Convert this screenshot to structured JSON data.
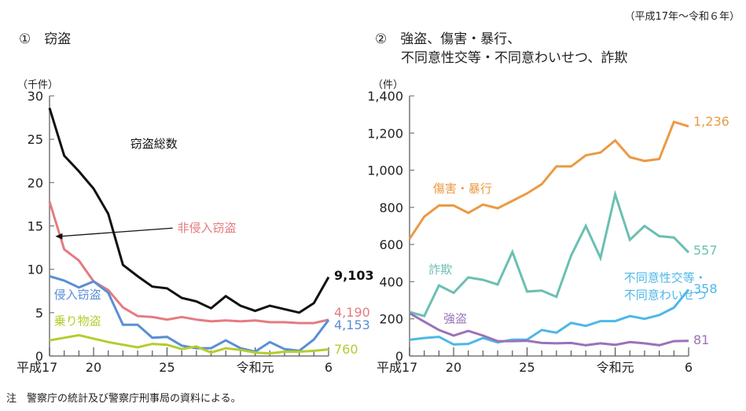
{
  "period_label": "（平成17年～令和６年）",
  "note": "注　警察庁の統計及び警察庁刑事局の資料による。",
  "chart_data": [
    {
      "type": "line",
      "title": "①　窃盗",
      "ylabel": "（千件）",
      "ylim": [
        0,
        30
      ],
      "yticks": [
        0,
        5,
        10,
        15,
        20,
        25,
        30
      ],
      "ytick_labels": [
        "0",
        "5",
        "10",
        "15",
        "20",
        "25",
        "30"
      ],
      "x": [
        "平成17",
        "18",
        "19",
        "20",
        "21",
        "22",
        "23",
        "24",
        "25",
        "26",
        "27",
        "28",
        "29",
        "30",
        "令和元",
        "2",
        "3",
        "4",
        "5",
        "6"
      ],
      "xtick_labels": [
        {
          "index": 0,
          "label": "平成17"
        },
        {
          "index": 3,
          "label": "20"
        },
        {
          "index": 8,
          "label": "25"
        },
        {
          "index": 14,
          "label": "令和元"
        },
        {
          "index": 19,
          "label": "6"
        }
      ],
      "major_tick_indices": [
        0,
        3,
        8,
        14,
        19
      ],
      "grid": false,
      "series": [
        {
          "name": "窃盗総数",
          "color": "#111111",
          "values": [
            28.6,
            23.1,
            21.3,
            19.3,
            16.4,
            10.5,
            9.2,
            8.0,
            7.8,
            6.7,
            6.3,
            5.5,
            6.9,
            5.8,
            5.2,
            5.8,
            5.4,
            5.0,
            6.1,
            9.103
          ],
          "end_label": "9,103",
          "label_pos": [
            5.5,
            24.0
          ]
        },
        {
          "name": "非侵入窃盗",
          "color": "#e57b80",
          "values": [
            17.8,
            12.3,
            11.0,
            8.6,
            7.6,
            5.6,
            4.6,
            4.5,
            4.2,
            4.5,
            4.2,
            4.0,
            4.1,
            4.0,
            4.1,
            3.9,
            3.9,
            3.8,
            3.8,
            4.19
          ],
          "end_label": "4,190",
          "label_pos": [
            8.7,
            14.3
          ],
          "arrow_to": [
            0.4,
            13.8
          ]
        },
        {
          "name": "侵入窃盗",
          "color": "#5a8fd4",
          "values": [
            9.2,
            8.7,
            7.9,
            8.6,
            7.3,
            3.6,
            3.6,
            2.1,
            2.2,
            1.2,
            0.9,
            0.9,
            1.8,
            0.9,
            0.5,
            1.6,
            0.8,
            0.6,
            1.9,
            4.153
          ],
          "end_label": "4,153",
          "label_pos": [
            0.3,
            6.6
          ]
        },
        {
          "name": "乗り物盗",
          "color": "#b5cc2e",
          "values": [
            1.8,
            2.1,
            2.4,
            2.0,
            1.6,
            1.3,
            1.0,
            1.4,
            1.3,
            0.8,
            1.1,
            0.4,
            0.9,
            0.7,
            0.4,
            0.3,
            0.5,
            0.5,
            0.6,
            0.76
          ],
          "end_label": "760",
          "label_pos": [
            0.3,
            3.6
          ]
        }
      ]
    },
    {
      "type": "line",
      "title": [
        "②　強盗、傷害・暴行、",
        "不同意性交等・不同意わいせつ、詐欺"
      ],
      "ylabel": "（件）",
      "ylim": [
        0,
        1400
      ],
      "yticks": [
        0,
        200,
        400,
        600,
        800,
        1000,
        1200,
        1400
      ],
      "ytick_labels": [
        "0",
        "200",
        "400",
        "600",
        "800",
        "1,000",
        "1,200",
        "1,400"
      ],
      "x": [
        "平成17",
        "18",
        "19",
        "20",
        "21",
        "22",
        "23",
        "24",
        "25",
        "26",
        "27",
        "28",
        "29",
        "30",
        "令和元",
        "2",
        "3",
        "4",
        "5",
        "6"
      ],
      "xtick_labels": [
        {
          "index": 0,
          "label": "平成17"
        },
        {
          "index": 3,
          "label": "20"
        },
        {
          "index": 8,
          "label": "25"
        },
        {
          "index": 14,
          "label": "令和元"
        },
        {
          "index": 19,
          "label": "6"
        }
      ],
      "major_tick_indices": [
        0,
        3,
        8,
        14,
        19
      ],
      "grid": false,
      "series": [
        {
          "name": "傷害・暴行",
          "color": "#eb9a45",
          "values": [
            630,
            750,
            810,
            810,
            770,
            815,
            795,
            835,
            875,
            925,
            1020,
            1020,
            1080,
            1095,
            1160,
            1070,
            1050,
            1060,
            1260,
            1236
          ],
          "end_label": "1,236",
          "label_pos": [
            1.6,
            880
          ]
        },
        {
          "name": "詐欺",
          "color": "#6bbfb3",
          "values": [
            237,
            215,
            380,
            340,
            423,
            410,
            385,
            560,
            347,
            352,
            318,
            540,
            700,
            528,
            870,
            625,
            700,
            645,
            638,
            557
          ],
          "end_label": "557",
          "label_pos": [
            1.3,
            445
          ]
        },
        {
          "name": "不同意性交等・不同意わいせつ",
          "color": "#4db8e8",
          "values": [
            87,
            97,
            103,
            62,
            65,
            97,
            73,
            88,
            88,
            140,
            125,
            178,
            162,
            188,
            188,
            215,
            200,
            220,
            260,
            358
          ],
          "end_label": "358",
          "label_lines": [
            "不同意性交等・",
            "不同意わいせつ"
          ],
          "label_pos": [
            14.6,
            400
          ]
        },
        {
          "name": "強盗",
          "color": "#9b72b8",
          "values": [
            230,
            185,
            140,
            110,
            135,
            110,
            80,
            80,
            82,
            70,
            68,
            70,
            58,
            68,
            60,
            75,
            68,
            58,
            80,
            81
          ],
          "end_label": "81",
          "label_pos": [
            2.3,
            180
          ]
        }
      ]
    }
  ]
}
